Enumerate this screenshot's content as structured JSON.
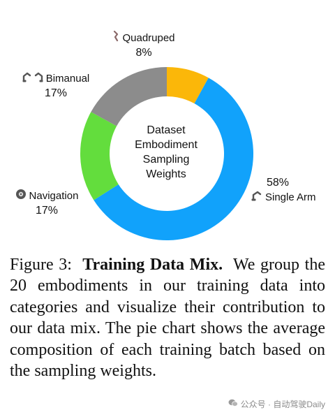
{
  "chart_data": {
    "type": "pie",
    "style": "donut",
    "center_label": [
      "Dataset",
      "Embodiment",
      "Sampling",
      "Weights"
    ],
    "slices": [
      {
        "name": "Single Arm",
        "value": 58,
        "label": "58%",
        "color": "#11a2fb",
        "icon": "robot-arm-icon"
      },
      {
        "name": "Navigation",
        "value": 17,
        "label": "17%",
        "color": "#63dd3d",
        "icon": "robot-wheel-icon"
      },
      {
        "name": "Bimanual",
        "value": 17,
        "label": "17%",
        "color": "#8c8c8c",
        "icon": "two-robot-arms-icon"
      },
      {
        "name": "Quadruped",
        "value": 8,
        "label": "8%",
        "color": "#fbb709",
        "icon": "quadruped-leg-icon"
      }
    ]
  },
  "caption": {
    "figure_number": "Figure 3:",
    "title": "Training Data Mix.",
    "body": "We group the 20 embodiments in our training data into categories and visualize their contribution to our data mix. The pie chart shows the average composition of each training batch based on the sampling weights."
  },
  "watermark": {
    "text": "公众号 · 自动驾驶Daily",
    "icon": "wechat-icon"
  }
}
